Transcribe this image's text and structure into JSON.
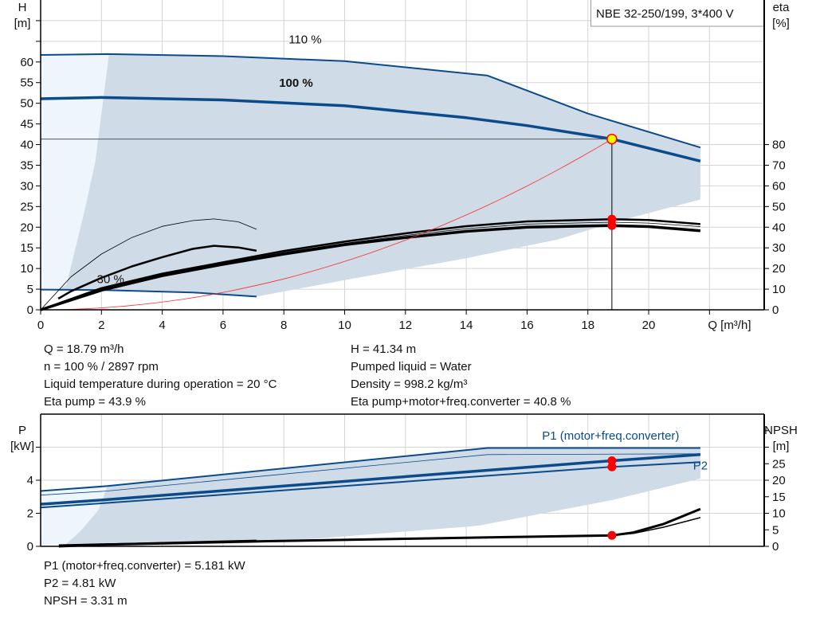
{
  "colors": {
    "curve": "#0b4a8b",
    "shade": "#cfdbe7",
    "light": "#eef5fc",
    "eta": "#000000",
    "system": "#ff2a2a",
    "point": "#ff0000",
    "duty_fill": "#ffff00",
    "grid": "#d4d4d4"
  },
  "chart_data": [
    {
      "type": "line",
      "title": "NBE 32-250/199, 3*400 V",
      "xlabel": "Q [m³/h]",
      "ylabel": [
        "H",
        "[m]"
      ],
      "y2label": [
        "eta",
        "[%]"
      ],
      "xlim": [
        0,
        23.8
      ],
      "ylim": [
        0,
        75
      ],
      "y2lim": [
        0,
        150
      ],
      "xticks": [
        0,
        2,
        4,
        6,
        8,
        10,
        12,
        14,
        16,
        18,
        20
      ],
      "yticks": [
        0,
        5,
        10,
        15,
        20,
        25,
        30,
        35,
        40,
        45,
        50,
        55,
        60
      ],
      "yticks_unlabeled": [
        65,
        70
      ],
      "y2ticks": [
        0,
        10,
        20,
        30,
        40,
        50,
        60,
        70,
        80
      ],
      "grid": true,
      "curve_labels": [
        {
          "text": "110 %",
          "q": 8.7,
          "h": 64.5,
          "bold": false
        },
        {
          "text": "100 %",
          "q": 8.4,
          "h": 54,
          "bold": true
        },
        {
          "text": "30 %",
          "q": 2.3,
          "h": 6.5,
          "bold": false
        }
      ],
      "head_curves": [
        {
          "speed": "110 %",
          "points": [
            [
              0,
              61.7
            ],
            [
              2.2,
              61.9
            ],
            [
              6,
              61.4
            ],
            [
              10,
              60.2
            ],
            [
              14.7,
              56.7
            ],
            [
              18,
              47.5
            ],
            [
              21.7,
              39.3
            ]
          ],
          "width": 2
        },
        {
          "speed": "100 %",
          "points": [
            [
              0,
              51.1
            ],
            [
              2,
              51.4
            ],
            [
              6,
              50.8
            ],
            [
              10,
              49.4
            ],
            [
              14,
              46.5
            ],
            [
              16,
              44.6
            ],
            [
              18.79,
              41.34
            ],
            [
              21.7,
              36
            ]
          ],
          "width": 3.5
        },
        {
          "speed": "30 %",
          "points": [
            [
              0,
              4.9
            ],
            [
              2,
              4.8
            ],
            [
              5,
              4.2
            ],
            [
              7.1,
              3.2
            ]
          ],
          "width": 2
        }
      ],
      "eta_curves": [
        {
          "points": [
            [
              0,
              0
            ],
            [
              1,
              16
            ],
            [
              2,
              27
            ],
            [
              3,
              35
            ],
            [
              4,
              40.4
            ],
            [
              5,
              43.2
            ],
            [
              5.7,
              44
            ],
            [
              6.5,
              42.6
            ],
            [
              7.1,
              39
            ]
          ],
          "width": 0.8
        },
        {
          "points": [
            [
              0.58,
              5.4
            ],
            [
              1,
              9
            ],
            [
              2,
              15.5
            ],
            [
              3,
              21
            ],
            [
              4,
              25.5
            ],
            [
              5,
              29.5
            ],
            [
              5.7,
              31
            ],
            [
              6.5,
              30.2
            ],
            [
              7.1,
              28.6
            ]
          ],
          "width": 2.5
        },
        {
          "points": [
            [
              0,
              0
            ],
            [
              2,
              10.5
            ],
            [
              4,
              17.5
            ],
            [
              6,
              23
            ],
            [
              8,
              28.5
            ],
            [
              10,
              33
            ],
            [
              12,
              37
            ],
            [
              14,
              40.5
            ],
            [
              16,
              42.8
            ],
            [
              18.79,
              43.9
            ],
            [
              20,
              43.5
            ],
            [
              21.7,
              41.5
            ]
          ],
          "width": 2.5
        },
        {
          "points": [
            [
              0,
              0
            ],
            [
              2,
              10
            ],
            [
              4,
              17
            ],
            [
              6,
              22.5
            ],
            [
              8,
              27.8
            ],
            [
              10,
              32.2
            ],
            [
              12,
              36
            ],
            [
              14,
              39.3
            ],
            [
              16,
              41.5
            ],
            [
              18.79,
              42.4
            ],
            [
              20,
              42
            ],
            [
              21.7,
              40.3
            ]
          ],
          "width": 0.8
        },
        {
          "points": [
            [
              0,
              0
            ],
            [
              2,
              9.5
            ],
            [
              4,
              16.5
            ],
            [
              6,
              22
            ],
            [
              8,
              27
            ],
            [
              10,
              31.5
            ],
            [
              12,
              35
            ],
            [
              14,
              38
            ],
            [
              16,
              40
            ],
            [
              18.79,
              40.8
            ],
            [
              20,
              40.3
            ],
            [
              21.7,
              38.3
            ]
          ],
          "width": 3.5
        }
      ],
      "system_curve": {
        "k": 0.1171,
        "q_max": 18.79
      },
      "shaded_region": [
        [
          2.2,
          61.9
        ],
        [
          6,
          61.4
        ],
        [
          10,
          60.2
        ],
        [
          14.7,
          56.7
        ],
        [
          18,
          47.5
        ],
        [
          21.7,
          39.3
        ],
        [
          21.7,
          26.7
        ],
        [
          19,
          21.5
        ],
        [
          17,
          17
        ],
        [
          14,
          12.5
        ],
        [
          10,
          7.2
        ],
        [
          7.1,
          3.2
        ],
        [
          5,
          4.2
        ],
        [
          2,
          4.8
        ],
        [
          0.6,
          4.9
        ],
        [
          0.85,
          6
        ],
        [
          1.47,
          24.8
        ],
        [
          1.8,
          36
        ],
        [
          2.25,
          61.9
        ]
      ],
      "light_region": [
        [
          0,
          61.7
        ],
        [
          2.25,
          61.9
        ],
        [
          1.8,
          36
        ],
        [
          1.47,
          24.8
        ],
        [
          0.85,
          6
        ],
        [
          0.6,
          4.9
        ],
        [
          0,
          4.9
        ]
      ],
      "duty_point": {
        "q": 18.79,
        "h": 41.34
      },
      "eta_points": [
        43.9,
        40.8
      ]
    },
    {
      "type": "line",
      "ylabel": [
        "P",
        "[kW]"
      ],
      "y2label": [
        "NPSH",
        "[m]"
      ],
      "xlim": [
        0,
        23.8
      ],
      "ylim": [
        0,
        8
      ],
      "y2lim": [
        0,
        40
      ],
      "yticks": [
        0,
        2,
        4
      ],
      "yticks_unlabeled": [
        6
      ],
      "y2ticks": [
        0,
        5,
        10,
        15,
        20,
        25
      ],
      "y2ticks_unlabeled": [
        30,
        35
      ],
      "grid": true,
      "series_labels": [
        {
          "text": "P1 (motor+freq.converter)",
          "q": 18.75,
          "p": 6.45
        },
        {
          "text": "P2",
          "q": 21.7,
          "p": 4.65
        }
      ],
      "power_curves": [
        {
          "points": [
            [
              0,
              3.35
            ],
            [
              2.2,
              3.65
            ],
            [
              14.7,
              5.95
            ],
            [
              21.7,
              5.95
            ]
          ],
          "width": 2
        },
        {
          "points": [
            [
              0,
              3.1
            ],
            [
              2.2,
              3.35
            ],
            [
              14.7,
              5.55
            ],
            [
              21.7,
              5.6
            ]
          ],
          "width": 0.8
        },
        {
          "points": [
            [
              0,
              2.55
            ],
            [
              2,
              2.8
            ],
            [
              18.79,
              5.181
            ],
            [
              21.7,
              5.55
            ]
          ],
          "width": 3.5
        },
        {
          "points": [
            [
              0,
              2.35
            ],
            [
              2,
              2.6
            ],
            [
              18.79,
              4.81
            ],
            [
              21.7,
              5.1
            ]
          ],
          "width": 2
        }
      ],
      "npsh_curves": [
        {
          "points": [
            [
              0.6,
              0
            ],
            [
              2,
              0.5
            ],
            [
              7.1,
              1.5
            ],
            [
              12,
              2.3
            ],
            [
              16,
              2.9
            ],
            [
              18.79,
              3.31
            ],
            [
              19.5,
              4.2
            ],
            [
              20.5,
              6.8
            ],
            [
              21.7,
              11.3
            ]
          ],
          "width": 3
        },
        {
          "points": [
            [
              18.79,
              3.3
            ],
            [
              19.5,
              3.9
            ],
            [
              20.5,
              5.8
            ],
            [
              21.7,
              8.7
            ]
          ],
          "width": 1.5
        },
        {
          "points": [
            [
              0.6,
              0.3
            ],
            [
              3,
              0.8
            ],
            [
              7.1,
              1.7
            ]
          ],
          "width": 2.5
        }
      ],
      "shaded_region": [
        [
          2.2,
          3.65
        ],
        [
          14.7,
          5.95
        ],
        [
          21.7,
          5.95
        ],
        [
          21.7,
          4.1
        ],
        [
          18.8,
          2.8
        ],
        [
          14.4,
          1.25
        ],
        [
          10,
          0.6
        ],
        [
          7.1,
          0.2
        ],
        [
          2,
          0.05
        ],
        [
          0.75,
          0
        ],
        [
          1.3,
          0.9
        ],
        [
          1.9,
          2.2
        ],
        [
          2.2,
          3.65
        ]
      ],
      "light_region": [
        [
          0,
          0.1
        ],
        [
          0,
          3.35
        ],
        [
          2.2,
          3.65
        ],
        [
          1.9,
          2.2
        ],
        [
          1.3,
          0.9
        ],
        [
          0.75,
          0
        ]
      ],
      "points_p": [
        5.181,
        4.81
      ],
      "point_npsh": 3.31,
      "duty_q": 18.79
    }
  ],
  "info": {
    "left": [
      "Q = 18.79 m³/h",
      "n = 100 % / 2897 rpm",
      "Liquid temperature during operation = 20 °C",
      "Eta pump = 43.9 %"
    ],
    "right": [
      "H = 41.34 m",
      "Pumped liquid = Water",
      "Density = 998.2 kg/m³",
      "Eta pump+motor+freq.converter = 40.8 %"
    ],
    "bottom": [
      "P1 (motor+freq.converter) = 5.181 kW",
      "P2 = 4.81 kW",
      "NPSH = 3.31 m"
    ]
  }
}
